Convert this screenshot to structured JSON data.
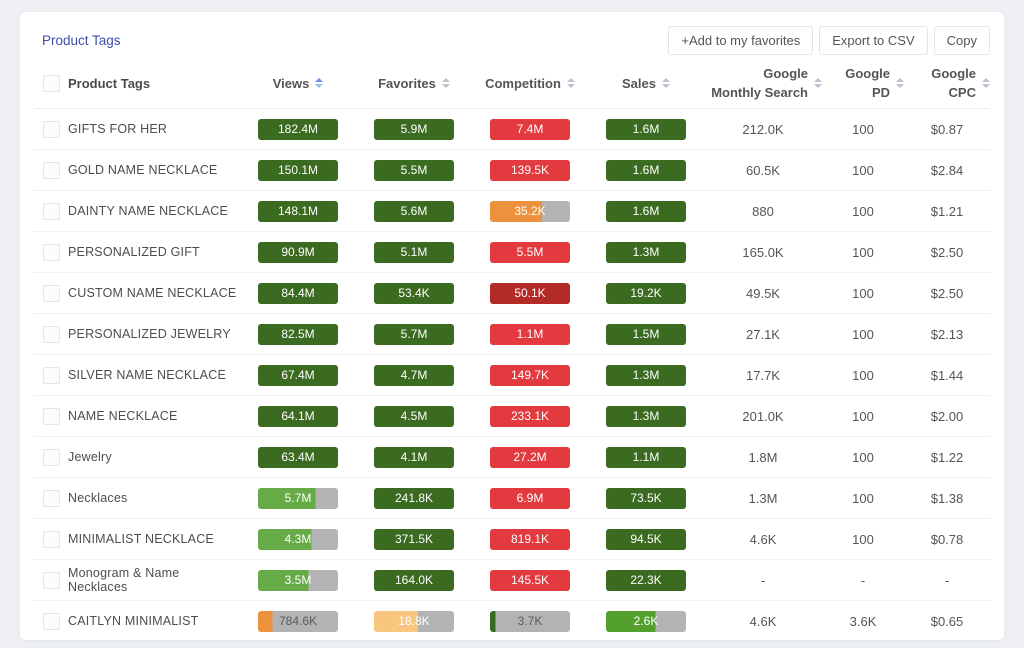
{
  "page": {
    "title": "Product Tags"
  },
  "toolbar": {
    "add_favorites": "+Add to my favorites",
    "export_csv": "Export to CSV",
    "copy": "Copy"
  },
  "colors": {
    "green": "#3b6b21",
    "green_mid": "#66ab47",
    "green_sales": "#54a02f",
    "red": "#e23a3f",
    "dark_red": "#b32b27",
    "orange": "#ec923d",
    "orange_light": "#f8c67e",
    "track": "#b3b3b3",
    "accent_blue": "#3c4da9"
  },
  "table": {
    "headers": {
      "name": "Product Tags",
      "views": "Views",
      "favorites": "Favorites",
      "competition": "Competition",
      "sales": "Sales",
      "monthly_search": [
        "Google",
        "Monthly Search"
      ],
      "pd": [
        "Google",
        "PD"
      ],
      "cpc": [
        "Google",
        "CPC"
      ]
    },
    "rows": [
      {
        "name": "GIFTS FOR HER",
        "views": {
          "text": "182.4M",
          "color": "green",
          "fill": 100
        },
        "favorites": {
          "text": "5.9M",
          "color": "green",
          "fill": 100
        },
        "competition": {
          "text": "7.4M",
          "color": "red",
          "fill": 100
        },
        "sales": {
          "text": "1.6M",
          "color": "green",
          "fill": 100
        },
        "monthly_search": "212.0K",
        "pd": "100",
        "cpc": "$0.87"
      },
      {
        "name": "GOLD NAME NECKLACE",
        "views": {
          "text": "150.1M",
          "color": "green",
          "fill": 100
        },
        "favorites": {
          "text": "5.5M",
          "color": "green",
          "fill": 100
        },
        "competition": {
          "text": "139.5K",
          "color": "red",
          "fill": 100
        },
        "sales": {
          "text": "1.6M",
          "color": "green",
          "fill": 100
        },
        "monthly_search": "60.5K",
        "pd": "100",
        "cpc": "$2.84"
      },
      {
        "name": "DAINTY NAME NECKLACE",
        "views": {
          "text": "148.1M",
          "color": "green",
          "fill": 100
        },
        "favorites": {
          "text": "5.6M",
          "color": "green",
          "fill": 100
        },
        "competition": {
          "text": "35.2K",
          "color": "orange",
          "fill": 65
        },
        "sales": {
          "text": "1.6M",
          "color": "green",
          "fill": 100
        },
        "monthly_search": "880",
        "pd": "100",
        "cpc": "$1.21"
      },
      {
        "name": "PERSONALIZED GIFT",
        "views": {
          "text": "90.9M",
          "color": "green",
          "fill": 100
        },
        "favorites": {
          "text": "5.1M",
          "color": "green",
          "fill": 100
        },
        "competition": {
          "text": "5.5M",
          "color": "red",
          "fill": 100
        },
        "sales": {
          "text": "1.3M",
          "color": "green",
          "fill": 100
        },
        "monthly_search": "165.0K",
        "pd": "100",
        "cpc": "$2.50"
      },
      {
        "name": "CUSTOM NAME NECKLACE",
        "views": {
          "text": "84.4M",
          "color": "green",
          "fill": 100
        },
        "favorites": {
          "text": "53.4K",
          "color": "green",
          "fill": 100
        },
        "competition": {
          "text": "50.1K",
          "color": "dark_red",
          "fill": 100
        },
        "sales": {
          "text": "19.2K",
          "color": "green",
          "fill": 100
        },
        "monthly_search": "49.5K",
        "pd": "100",
        "cpc": "$2.50"
      },
      {
        "name": "PERSONALIZED JEWELRY",
        "views": {
          "text": "82.5M",
          "color": "green",
          "fill": 100
        },
        "favorites": {
          "text": "5.7M",
          "color": "green",
          "fill": 100
        },
        "competition": {
          "text": "1.1M",
          "color": "red",
          "fill": 100
        },
        "sales": {
          "text": "1.5M",
          "color": "green",
          "fill": 100
        },
        "monthly_search": "27.1K",
        "pd": "100",
        "cpc": "$2.13"
      },
      {
        "name": "SILVER NAME NECKLACE",
        "views": {
          "text": "67.4M",
          "color": "green",
          "fill": 100
        },
        "favorites": {
          "text": "4.7M",
          "color": "green",
          "fill": 100
        },
        "competition": {
          "text": "149.7K",
          "color": "red",
          "fill": 100
        },
        "sales": {
          "text": "1.3M",
          "color": "green",
          "fill": 100
        },
        "monthly_search": "17.7K",
        "pd": "100",
        "cpc": "$1.44"
      },
      {
        "name": "NAME NECKLACE",
        "views": {
          "text": "64.1M",
          "color": "green",
          "fill": 100
        },
        "favorites": {
          "text": "4.5M",
          "color": "green",
          "fill": 100
        },
        "competition": {
          "text": "233.1K",
          "color": "red",
          "fill": 100
        },
        "sales": {
          "text": "1.3M",
          "color": "green",
          "fill": 100
        },
        "monthly_search": "201.0K",
        "pd": "100",
        "cpc": "$2.00"
      },
      {
        "name": "Jewelry",
        "views": {
          "text": "63.4M",
          "color": "green",
          "fill": 100
        },
        "favorites": {
          "text": "4.1M",
          "color": "green",
          "fill": 100
        },
        "competition": {
          "text": "27.2M",
          "color": "red",
          "fill": 100
        },
        "sales": {
          "text": "1.1M",
          "color": "green",
          "fill": 100
        },
        "monthly_search": "1.8M",
        "pd": "100",
        "cpc": "$1.22"
      },
      {
        "name": "Necklaces",
        "views": {
          "text": "5.7M",
          "color": "green_mid",
          "fill": 72
        },
        "favorites": {
          "text": "241.8K",
          "color": "green",
          "fill": 100
        },
        "competition": {
          "text": "6.9M",
          "color": "red",
          "fill": 100
        },
        "sales": {
          "text": "73.5K",
          "color": "green",
          "fill": 100
        },
        "monthly_search": "1.3M",
        "pd": "100",
        "cpc": "$1.38"
      },
      {
        "name": "MINIMALIST NECKLACE",
        "views": {
          "text": "4.3M",
          "color": "green_mid",
          "fill": 67
        },
        "favorites": {
          "text": "371.5K",
          "color": "green",
          "fill": 100
        },
        "competition": {
          "text": "819.1K",
          "color": "red",
          "fill": 100
        },
        "sales": {
          "text": "94.5K",
          "color": "green",
          "fill": 100
        },
        "monthly_search": "4.6K",
        "pd": "100",
        "cpc": "$0.78"
      },
      {
        "name": "Monogram & Name Necklaces",
        "views": {
          "text": "3.5M",
          "color": "green_mid",
          "fill": 63
        },
        "favorites": {
          "text": "164.0K",
          "color": "green",
          "fill": 100
        },
        "competition": {
          "text": "145.5K",
          "color": "red",
          "fill": 100
        },
        "sales": {
          "text": "22.3K",
          "color": "green",
          "fill": 100
        },
        "monthly_search": "-",
        "pd": "-",
        "cpc": "-"
      },
      {
        "name": "CAITLYN MINIMALIST",
        "views": {
          "text": "784.6K",
          "color": "orange",
          "fill": 18
        },
        "favorites": {
          "text": "18.8K",
          "color": "orange_light",
          "fill": 55
        },
        "competition": {
          "text": "3.7K",
          "color": "green",
          "fill": 7
        },
        "sales": {
          "text": "2.6K",
          "color": "green_sales",
          "fill": 62
        },
        "monthly_search": "4.6K",
        "pd": "3.6K",
        "cpc": "$0.65"
      }
    ]
  }
}
